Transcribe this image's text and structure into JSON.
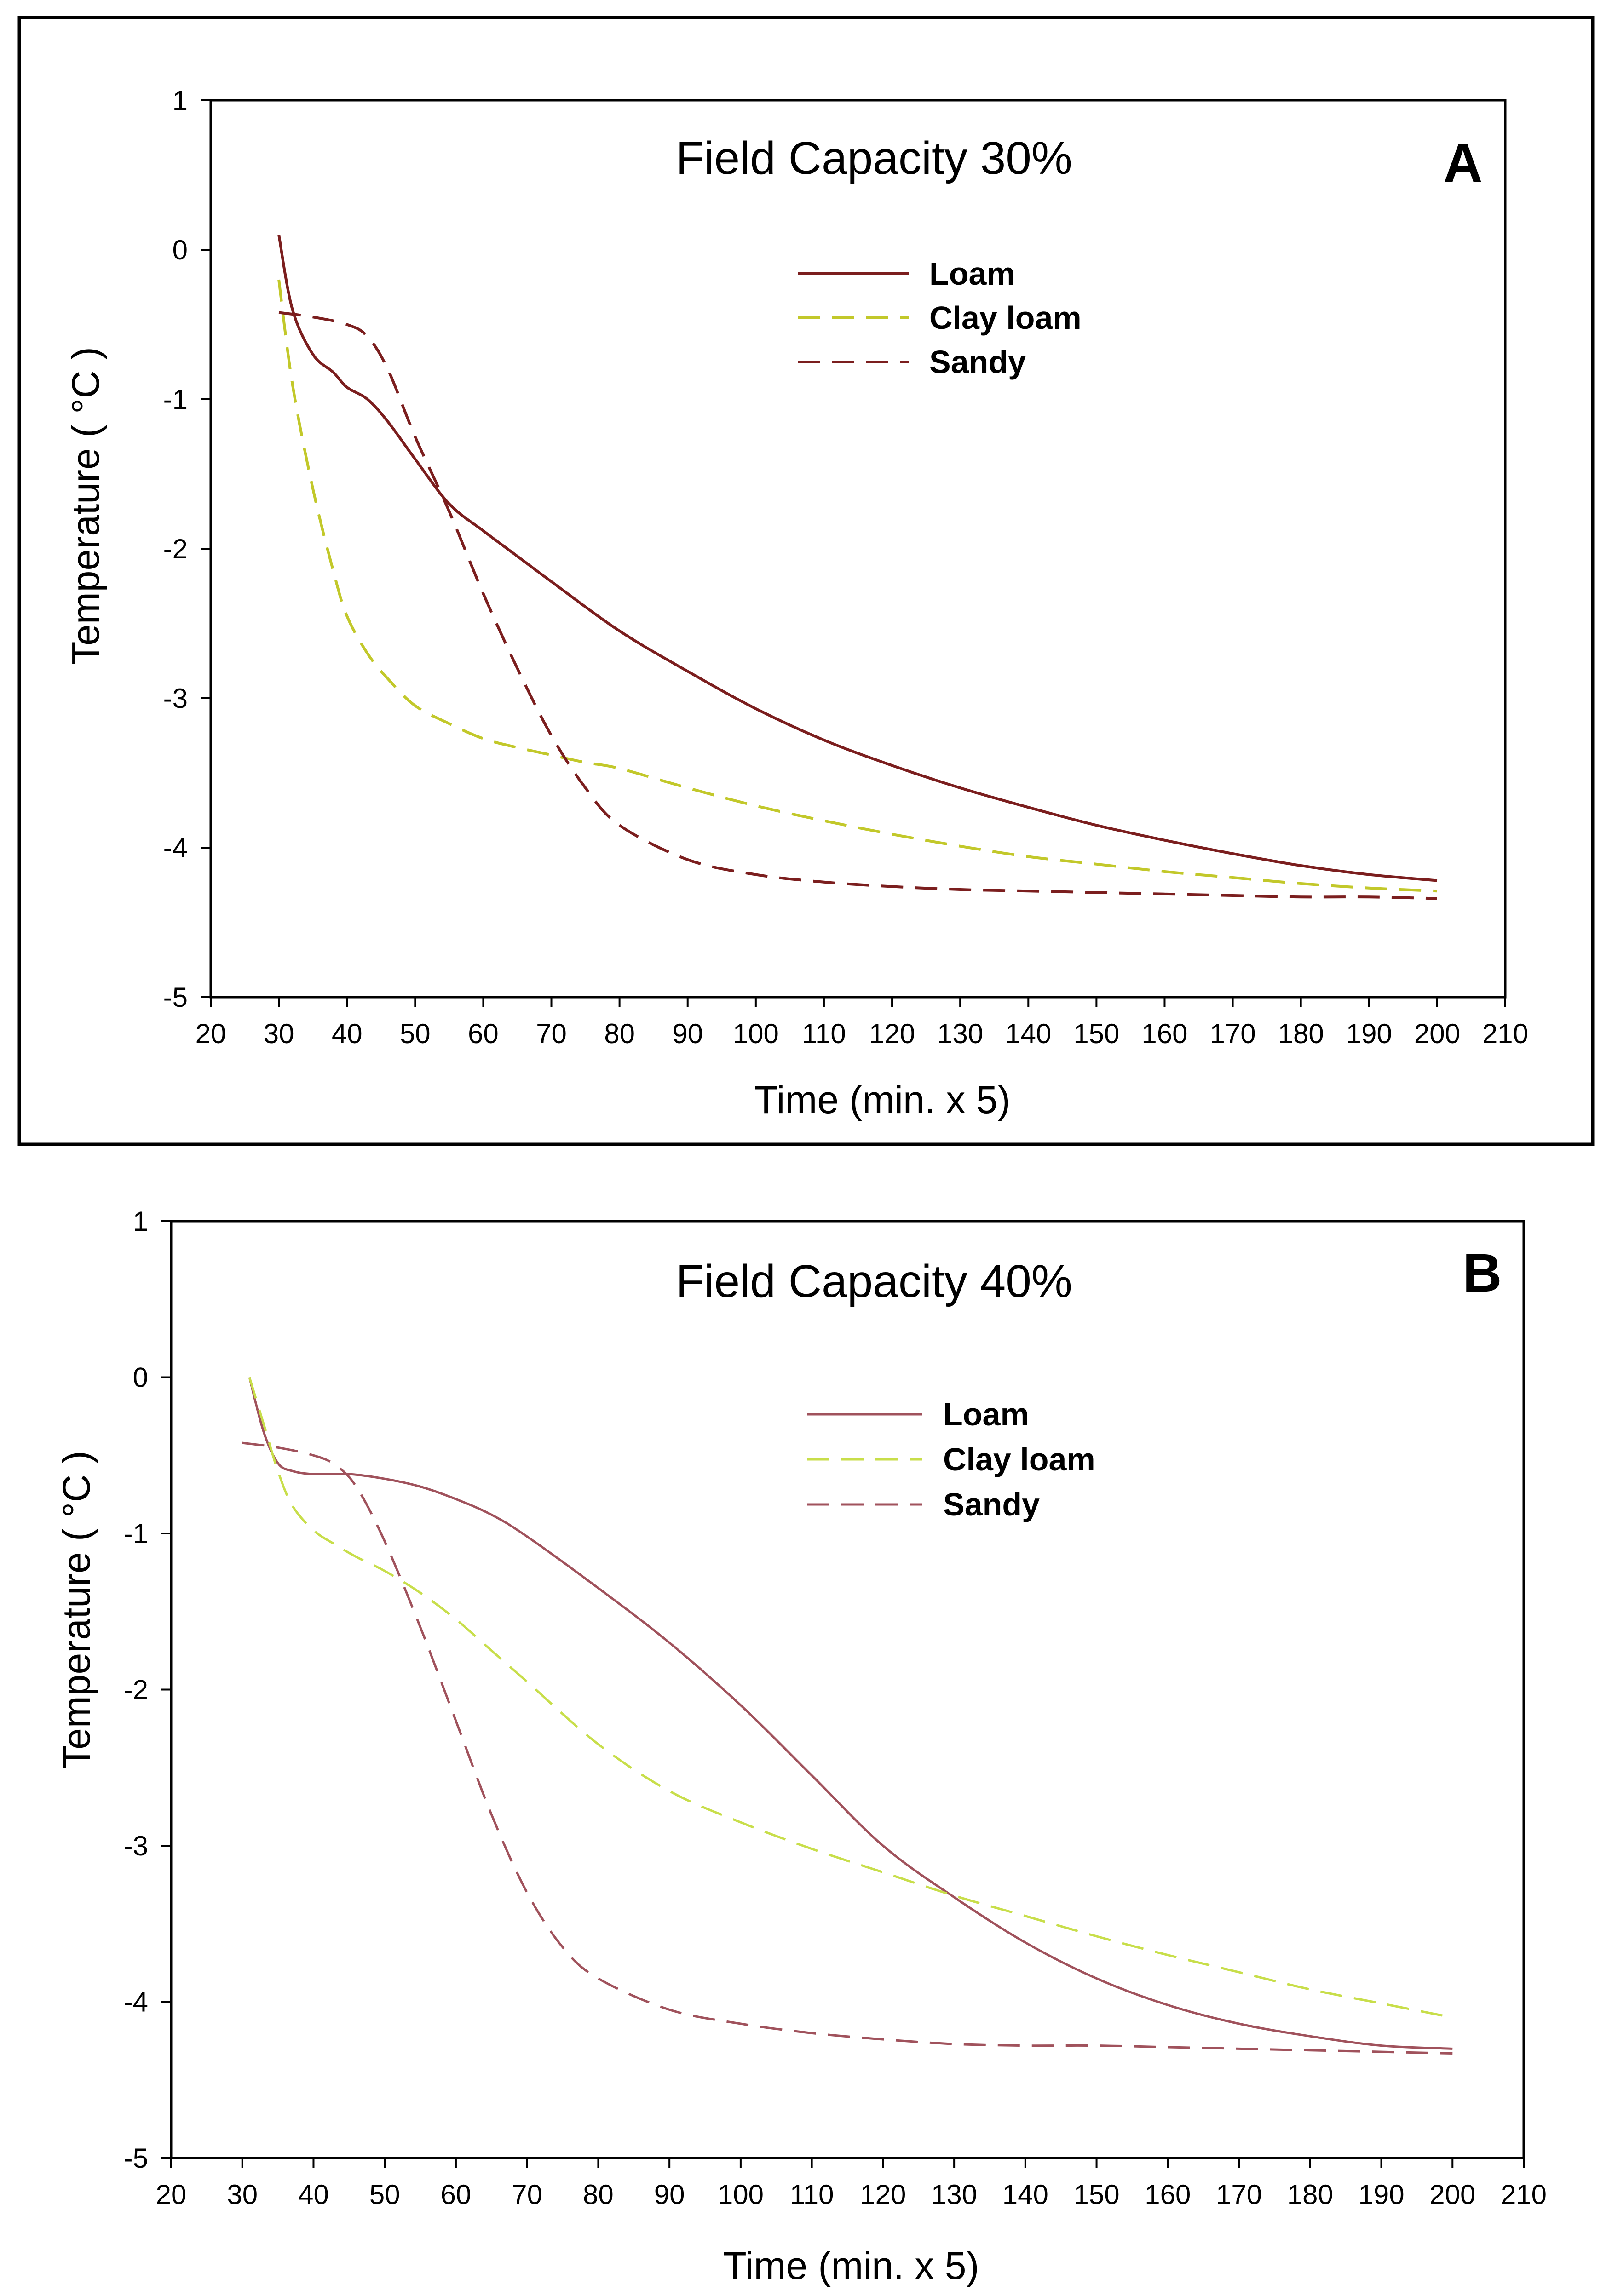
{
  "chart_data": [
    {
      "type": "line",
      "panel": "A",
      "title": "Field Capacity 30%",
      "xlabel": "Time (min. x 5)",
      "ylabel": "Temperature ( °C )",
      "xlim": [
        20,
        210
      ],
      "ylim": [
        -5,
        1
      ],
      "xticks": [
        20,
        30,
        40,
        50,
        60,
        70,
        80,
        90,
        100,
        110,
        120,
        130,
        140,
        150,
        160,
        170,
        180,
        190,
        200,
        210
      ],
      "yticks": [
        1,
        0,
        -1,
        -2,
        -3,
        -4,
        -5
      ],
      "legend_position": "top-center",
      "series": [
        {
          "name": "Loam",
          "color": "#7b1e1e",
          "dash": "solid",
          "x": [
            30,
            32,
            35,
            38,
            40,
            43,
            46,
            50,
            55,
            60,
            65,
            70,
            80,
            90,
            100,
            110,
            120,
            130,
            140,
            150,
            160,
            170,
            180,
            190,
            200
          ],
          "y": [
            0.1,
            -0.4,
            -0.7,
            -0.82,
            -0.92,
            -1.0,
            -1.15,
            -1.4,
            -1.7,
            -1.88,
            -2.05,
            -2.22,
            -2.55,
            -2.82,
            -3.07,
            -3.28,
            -3.45,
            -3.6,
            -3.73,
            -3.85,
            -3.95,
            -4.04,
            -4.12,
            -4.18,
            -4.22
          ]
        },
        {
          "name": "Clay loam",
          "color": "#c2c82a",
          "dash": "dashed",
          "x": [
            30,
            32,
            35,
            38,
            40,
            43,
            46,
            50,
            55,
            60,
            65,
            70,
            75,
            80,
            90,
            100,
            110,
            120,
            130,
            140,
            150,
            160,
            170,
            180,
            190,
            200
          ],
          "y": [
            -0.2,
            -0.9,
            -1.6,
            -2.15,
            -2.45,
            -2.7,
            -2.87,
            -3.05,
            -3.17,
            -3.27,
            -3.33,
            -3.38,
            -3.43,
            -3.47,
            -3.6,
            -3.72,
            -3.82,
            -3.91,
            -3.99,
            -4.06,
            -4.11,
            -4.16,
            -4.2,
            -4.24,
            -4.27,
            -4.29
          ]
        },
        {
          "name": "Sandy",
          "color": "#7b1e1e",
          "dash": "dashed",
          "x": [
            30,
            35,
            40,
            43,
            46,
            50,
            55,
            60,
            65,
            70,
            75,
            80,
            90,
            100,
            110,
            120,
            130,
            140,
            150,
            160,
            170,
            180,
            190,
            200
          ],
          "y": [
            -0.42,
            -0.45,
            -0.5,
            -0.58,
            -0.8,
            -1.25,
            -1.75,
            -2.3,
            -2.8,
            -3.25,
            -3.6,
            -3.85,
            -4.08,
            -4.18,
            -4.23,
            -4.26,
            -4.28,
            -4.29,
            -4.3,
            -4.31,
            -4.32,
            -4.33,
            -4.33,
            -4.34
          ]
        }
      ]
    },
    {
      "type": "line",
      "panel": "B",
      "title": "Field Capacity 40%",
      "xlabel": "Time (min. x 5)",
      "ylabel": "Temperature ( °C )",
      "xlim": [
        20,
        210
      ],
      "ylim": [
        -5,
        1
      ],
      "xticks": [
        20,
        30,
        40,
        50,
        60,
        70,
        80,
        90,
        100,
        110,
        120,
        130,
        140,
        150,
        160,
        170,
        180,
        190,
        200,
        210
      ],
      "yticks": [
        1,
        0,
        -1,
        -2,
        -3,
        -4,
        -5
      ],
      "legend_position": "top-center",
      "series": [
        {
          "name": "Loam",
          "color": "#a0525c",
          "dash": "solid",
          "x": [
            31,
            33,
            35,
            37,
            40,
            45,
            50,
            55,
            60,
            65,
            70,
            80,
            90,
            100,
            110,
            120,
            130,
            140,
            150,
            160,
            170,
            180,
            190,
            200
          ],
          "y": [
            0,
            -0.35,
            -0.55,
            -0.6,
            -0.62,
            -0.62,
            -0.65,
            -0.7,
            -0.78,
            -0.88,
            -1.02,
            -1.35,
            -1.7,
            -2.1,
            -2.55,
            -3.0,
            -3.33,
            -3.62,
            -3.85,
            -4.02,
            -4.14,
            -4.22,
            -4.28,
            -4.3
          ]
        },
        {
          "name": "Clay loam",
          "color": "#c8de4a",
          "dash": "dashed",
          "x": [
            31,
            33,
            35,
            37,
            40,
            43,
            46,
            50,
            55,
            60,
            65,
            70,
            80,
            90,
            100,
            110,
            120,
            130,
            140,
            150,
            160,
            170,
            180,
            190,
            200
          ],
          "y": [
            0,
            -0.3,
            -0.6,
            -0.82,
            -0.98,
            -1.07,
            -1.15,
            -1.24,
            -1.38,
            -1.55,
            -1.75,
            -1.95,
            -2.35,
            -2.65,
            -2.85,
            -3.02,
            -3.17,
            -3.32,
            -3.45,
            -3.58,
            -3.7,
            -3.81,
            -3.92,
            -4.01,
            -4.1
          ]
        },
        {
          "name": "Sandy",
          "color": "#a0525c",
          "dash": "dashed",
          "x": [
            30,
            35,
            40,
            43,
            46,
            50,
            55,
            60,
            65,
            70,
            75,
            80,
            90,
            100,
            110,
            120,
            130,
            140,
            150,
            160,
            170,
            180,
            190,
            200
          ],
          "y": [
            -0.42,
            -0.45,
            -0.5,
            -0.56,
            -0.7,
            -1.05,
            -1.6,
            -2.2,
            -2.8,
            -3.3,
            -3.65,
            -3.85,
            -4.05,
            -4.14,
            -4.2,
            -4.24,
            -4.27,
            -4.28,
            -4.28,
            -4.29,
            -4.3,
            -4.31,
            -4.32,
            -4.33
          ]
        }
      ]
    }
  ]
}
